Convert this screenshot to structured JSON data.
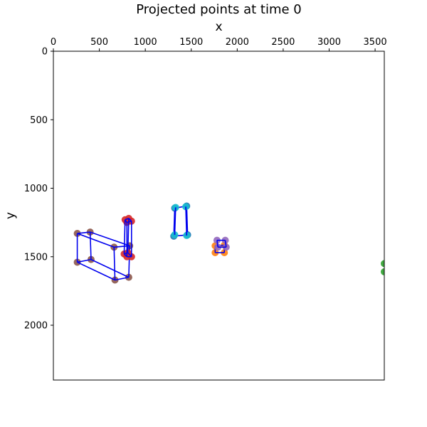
{
  "chart_data": {
    "type": "scatter",
    "title": "Projected points at time 0",
    "xlabel": "x",
    "ylabel": "y",
    "xlim": [
      0,
      3600
    ],
    "ylim": [
      2400,
      0
    ],
    "x_axis_position": "top",
    "y_inverted": true,
    "grid": false,
    "xticks": [
      0,
      500,
      1000,
      1500,
      2000,
      2500,
      3000,
      3500
    ],
    "yticks": [
      0,
      500,
      1000,
      1500,
      2000
    ],
    "line_color": "#0000ee",
    "boxes": [
      {
        "color": "#8c564b",
        "points": [
          [
            260,
            1330
          ],
          [
            400,
            1320
          ],
          [
            660,
            1430
          ],
          [
            830,
            1420
          ],
          [
            260,
            1540
          ],
          [
            410,
            1520
          ],
          [
            670,
            1670
          ],
          [
            820,
            1650
          ]
        ],
        "edges": [
          [
            0,
            1
          ],
          [
            0,
            2
          ],
          [
            1,
            3
          ],
          [
            2,
            3
          ],
          [
            4,
            5
          ],
          [
            4,
            6
          ],
          [
            5,
            7
          ],
          [
            6,
            7
          ],
          [
            0,
            4
          ],
          [
            1,
            5
          ],
          [
            2,
            6
          ],
          [
            3,
            7
          ]
        ]
      },
      {
        "color": "#d62728",
        "points": [
          [
            780,
            1230
          ],
          [
            820,
            1220
          ],
          [
            800,
            1250
          ],
          [
            850,
            1240
          ],
          [
            770,
            1480
          ],
          [
            810,
            1470
          ],
          [
            800,
            1500
          ],
          [
            850,
            1500
          ]
        ],
        "edges": [
          [
            0,
            1
          ],
          [
            0,
            2
          ],
          [
            1,
            3
          ],
          [
            2,
            3
          ],
          [
            4,
            5
          ],
          [
            4,
            6
          ],
          [
            5,
            7
          ],
          [
            6,
            7
          ],
          [
            0,
            4
          ],
          [
            1,
            5
          ],
          [
            2,
            6
          ],
          [
            3,
            7
          ]
        ]
      },
      {
        "color": "#1f77b4",
        "points": [
          [
            1320,
            1145
          ],
          [
            1450,
            1130
          ],
          [
            1310,
            1350
          ],
          [
            1460,
            1340
          ]
        ],
        "edges": [
          [
            0,
            1
          ],
          [
            2,
            3
          ],
          [
            0,
            2
          ],
          [
            1,
            3
          ]
        ]
      },
      {
        "color": "#17becf",
        "points": [
          [
            1330,
            1140
          ],
          [
            1440,
            1135
          ],
          [
            1320,
            1340
          ],
          [
            1450,
            1345
          ]
        ],
        "edges": [
          [
            0,
            2
          ],
          [
            1,
            3
          ]
        ]
      },
      {
        "color": "#ff7f0e",
        "points": [
          [
            1760,
            1420
          ],
          [
            1860,
            1415
          ],
          [
            1760,
            1470
          ],
          [
            1860,
            1470
          ]
        ],
        "edges": [
          [
            0,
            1
          ],
          [
            2,
            3
          ],
          [
            0,
            2
          ],
          [
            1,
            3
          ]
        ]
      },
      {
        "color": "#9467bd",
        "points": [
          [
            1780,
            1380
          ],
          [
            1870,
            1380
          ],
          [
            1790,
            1430
          ],
          [
            1880,
            1430
          ]
        ],
        "edges": [
          [
            0,
            1
          ],
          [
            2,
            3
          ],
          [
            0,
            2
          ],
          [
            1,
            3
          ]
        ]
      },
      {
        "color": "#2ca02c",
        "points": [
          [
            3600,
            1550
          ],
          [
            3600,
            1610
          ]
        ],
        "edges": []
      }
    ]
  }
}
